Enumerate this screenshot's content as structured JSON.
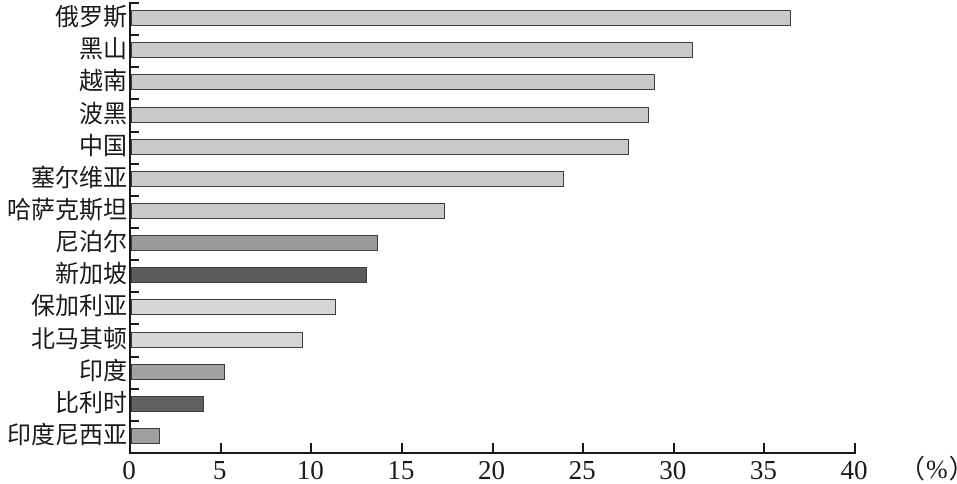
{
  "chart_data": {
    "type": "bar",
    "orientation": "horizontal",
    "title": "",
    "xlabel": "",
    "ylabel": "",
    "unit": "（%）",
    "xlim": [
      0,
      40
    ],
    "x_ticks": [
      0,
      5,
      10,
      15,
      20,
      25,
      30,
      35,
      40
    ],
    "grid": false,
    "legend_position": "none",
    "categories": [
      "俄罗斯",
      "黑山",
      "越南",
      "波黑",
      "中国",
      "塞尔维亚",
      "哈萨克斯坦",
      "尼泊尔",
      "新加坡",
      "保加利亚",
      "北马其顿",
      "印度",
      "比利时",
      "印度尼西亚"
    ],
    "values": [
      36.4,
      31.0,
      28.9,
      28.6,
      27.5,
      23.9,
      17.3,
      13.6,
      13.0,
      11.3,
      9.5,
      5.2,
      4.0,
      1.6
    ],
    "bar_colors": [
      "#c9c9c9",
      "#c9c9c9",
      "#c9c9c9",
      "#c9c9c9",
      "#c9c9c9",
      "#c9c9c9",
      "#c9c9c9",
      "#9a9a9a",
      "#5b5b5b",
      "#d6d6d6",
      "#d6d6d6",
      "#a1a1a1",
      "#616161",
      "#9e9e9e"
    ],
    "axis_color": "#1a1a1a"
  }
}
